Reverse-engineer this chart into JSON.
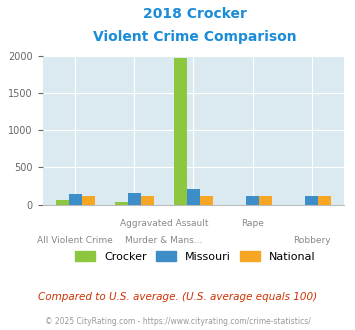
{
  "title_line1": "2018 Crocker",
  "title_line2": "Violent Crime Comparison",
  "title_color": "#1a8cd8",
  "crocker": [
    60,
    40,
    1970,
    0,
    0
  ],
  "missouri": [
    140,
    155,
    215,
    115,
    115
  ],
  "national": [
    110,
    110,
    115,
    110,
    110
  ],
  "colors": {
    "crocker": "#8dc63f",
    "missouri": "#3c8dc8",
    "national": "#f5a623"
  },
  "ylim": [
    0,
    2000
  ],
  "yticks": [
    0,
    500,
    1000,
    1500,
    2000
  ],
  "bg_color": "#daeaf0",
  "grid_color": "#ffffff",
  "footer_note": "Compared to U.S. average. (U.S. average equals 100)",
  "copyright": "© 2025 CityRating.com - https://www.cityrating.com/crime-statistics/",
  "bar_width": 0.22,
  "top_xlabels": [
    "",
    "Aggravated Assault",
    "",
    "",
    "Rape",
    "",
    "Robbery"
  ],
  "bot_xlabels": [
    "All Violent Crime",
    "",
    "Murder & Mans...",
    "",
    "",
    "Robbery",
    ""
  ]
}
